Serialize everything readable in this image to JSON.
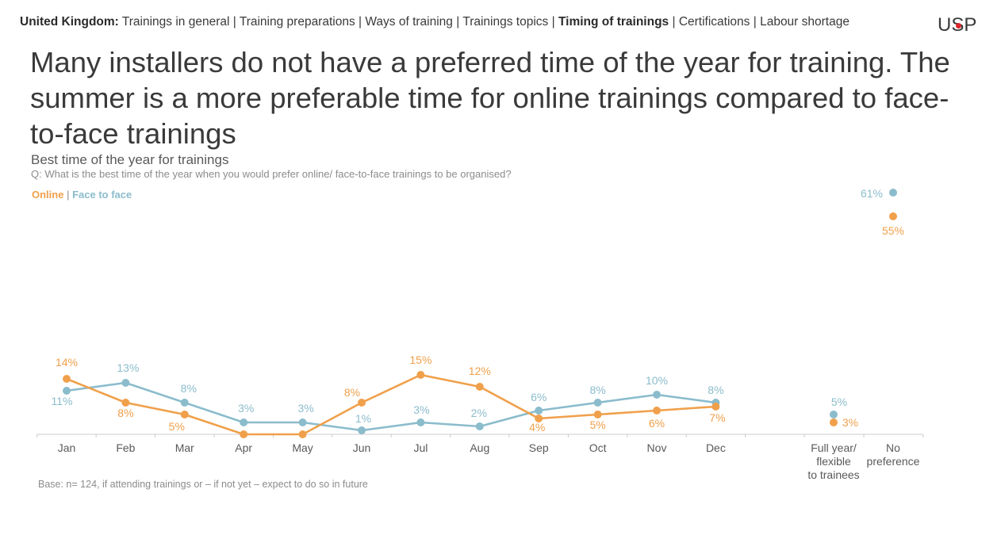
{
  "nav": {
    "country": "United Kingdom:",
    "items": [
      {
        "label": "Trainings in general",
        "active": false
      },
      {
        "label": "Training preparations",
        "active": false
      },
      {
        "label": "Ways of training",
        "active": false
      },
      {
        "label": "Trainings topics",
        "active": false
      },
      {
        "label": "Timing of trainings",
        "active": true
      },
      {
        "label": "Certifications",
        "active": false
      },
      {
        "label": "Labour shortage",
        "active": false
      }
    ],
    "separator": "|"
  },
  "logo": {
    "left": "U",
    "dot_letter": "S",
    "right": "P"
  },
  "headline": "Many installers do not have a preferred time of the year for training. The summer is a more preferable time for online trainings compared to face-to-face trainings",
  "subtitle": "Best time of the year for trainings",
  "question": "Q: What is the best time of the year when you would prefer online/ face-to-face trainings to be organised?",
  "legend": {
    "online": "Online",
    "separator": "|",
    "face_to_face": "Face to face"
  },
  "base_note": "Base: n= 124, if attending trainings or – if not yet – expect to do so in future",
  "colors": {
    "online": "#f0a04b",
    "face_to_face": "#8bbccc",
    "axis": "#cccccc",
    "text": "#3a3a3a"
  },
  "chart_data": {
    "type": "line",
    "title": "Best time of the year for trainings",
    "categories": [
      "Jan",
      "Feb",
      "Mar",
      "Apr",
      "May",
      "Jun",
      "Jul",
      "Aug",
      "Sep",
      "Oct",
      "Nov",
      "Dec"
    ],
    "extra_categories": [
      [
        "Full year/",
        "flexible",
        "to trainees"
      ],
      [
        "No",
        "preference"
      ]
    ],
    "series": [
      {
        "name": "Online",
        "values": [
          14,
          8,
          5,
          0,
          0,
          8,
          15,
          12,
          4,
          5,
          6,
          7
        ],
        "labels": [
          "14%",
          "8%",
          "5%",
          "",
          "",
          "8%",
          "15%",
          "12%",
          "4%",
          "5%",
          "6%",
          "7%"
        ],
        "extra_values": [
          3,
          55
        ],
        "extra_labels": [
          "3%",
          "55%"
        ]
      },
      {
        "name": "Face to face",
        "values": [
          11,
          13,
          8,
          3,
          3,
          1,
          3,
          2,
          6,
          8,
          10,
          8
        ],
        "labels": [
          "11%",
          "13%",
          "8%",
          "3%",
          "3%",
          "1%",
          "3%",
          "2%",
          "6%",
          "8%",
          "10%",
          "8%"
        ],
        "extra_values": [
          5,
          61
        ],
        "extra_labels": [
          "5%",
          "61%"
        ]
      }
    ],
    "unit": "%",
    "grid": false,
    "legend_position": "top-left"
  }
}
